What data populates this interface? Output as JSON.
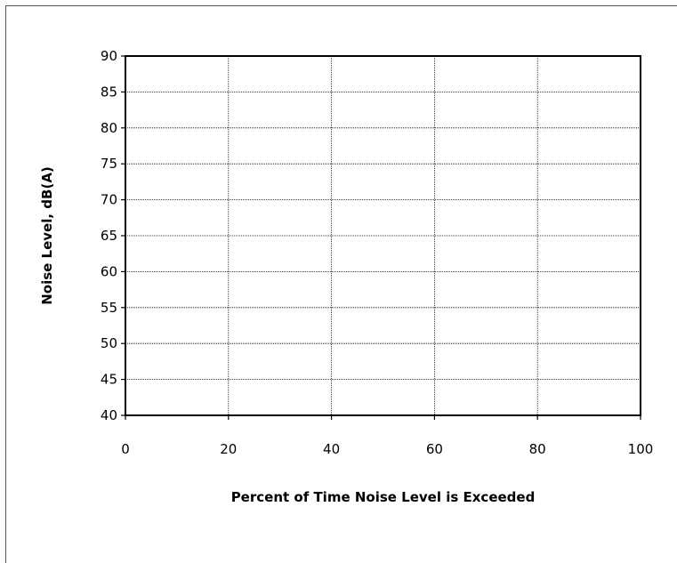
{
  "chart_data": {
    "type": "line",
    "title": "",
    "xlabel": "Percent of Time Noise Level is Exceeded",
    "ylabel": "Noise Level, dB(A)",
    "xlim": [
      0,
      100
    ],
    "ylim": [
      40,
      90
    ],
    "x_ticks": [
      0,
      20,
      40,
      60,
      80,
      100
    ],
    "y_ticks": [
      40,
      45,
      50,
      55,
      60,
      65,
      70,
      75,
      80,
      85,
      90
    ],
    "grid": true,
    "grid_style": "dotted",
    "series": []
  }
}
